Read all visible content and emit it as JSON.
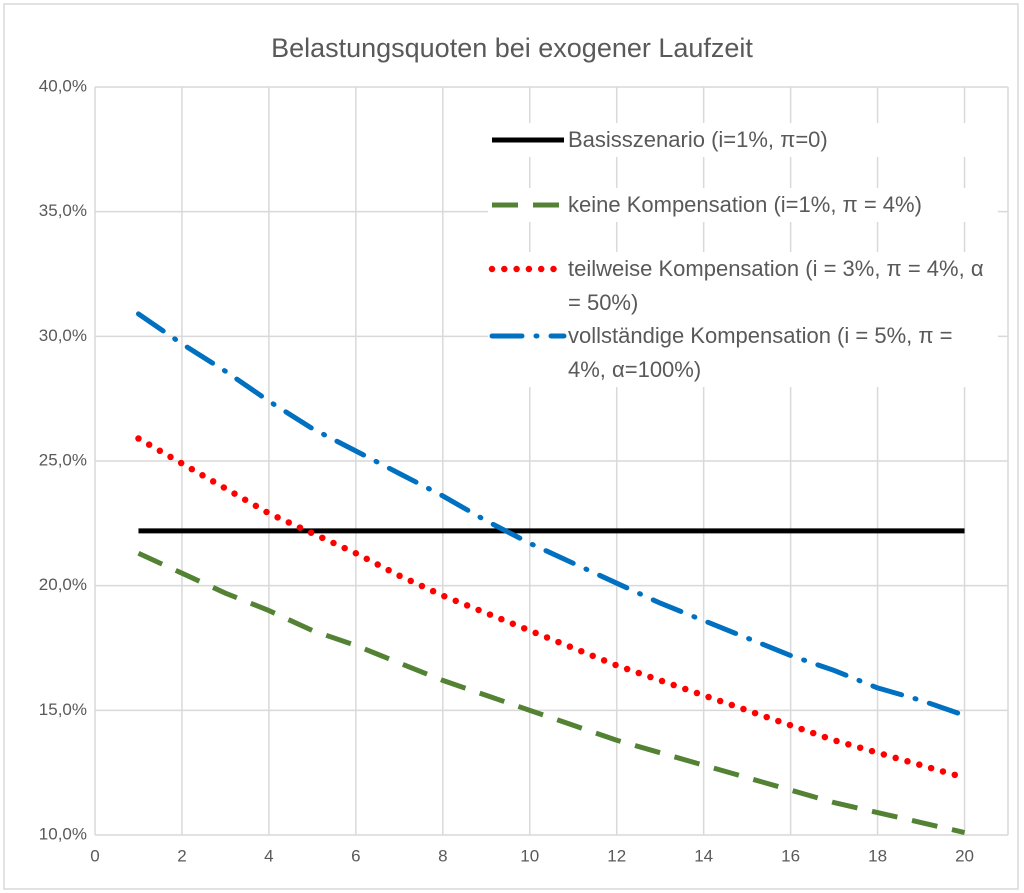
{
  "chart_data": {
    "type": "line",
    "title": "Belastungsquoten bei exogener Laufzeit",
    "x": [
      1,
      2,
      3,
      4,
      5,
      6,
      7,
      8,
      9,
      10,
      11,
      12,
      13,
      14,
      15,
      16,
      17,
      18,
      19,
      20
    ],
    "xlim": [
      0,
      21
    ],
    "xticks": [
      0,
      2,
      4,
      6,
      8,
      10,
      12,
      14,
      16,
      18,
      20
    ],
    "ylim": [
      10,
      40
    ],
    "yticks": [
      {
        "value": 10,
        "label": "10,0%"
      },
      {
        "value": 15,
        "label": "15,0%"
      },
      {
        "value": 20,
        "label": "20,0%"
      },
      {
        "value": 25,
        "label": "25,0%"
      },
      {
        "value": 30,
        "label": "30,0%"
      },
      {
        "value": 35,
        "label": "35,0%"
      },
      {
        "value": 40,
        "label": "40,0%"
      }
    ],
    "grid": true,
    "legend": "top-right",
    "series": [
      {
        "name": "Basisszenario (i=1%, π=0)",
        "color": "#000000",
        "line_style": "solid",
        "values": [
          22.2,
          22.2,
          22.2,
          22.2,
          22.2,
          22.2,
          22.2,
          22.2,
          22.2,
          22.2,
          22.2,
          22.2,
          22.2,
          22.2,
          22.2,
          22.2,
          22.2,
          22.2,
          22.2,
          22.2
        ]
      },
      {
        "name": "keine Kompensation (i=1%, π = 4%)",
        "color": "#548235",
        "line_style": "dash",
        "values": [
          21.3,
          20.5,
          19.7,
          19.0,
          18.2,
          17.6,
          16.9,
          16.2,
          15.6,
          15.0,
          14.4,
          13.8,
          13.3,
          12.8,
          12.3,
          11.8,
          11.3,
          10.9,
          10.5,
          10.1
        ]
      },
      {
        "name": "teilweise Kompensation (i = 3%, π = 4%, α = 50%)",
        "color": "#ff0000",
        "line_style": "dot",
        "values": [
          25.9,
          24.9,
          23.9,
          22.9,
          22.1,
          21.3,
          20.4,
          19.6,
          18.9,
          18.2,
          17.5,
          16.8,
          16.2,
          15.6,
          15.0,
          14.4,
          13.8,
          13.3,
          12.8,
          12.3
        ]
      },
      {
        "name": "vollständige Kompensation (i = 5%, π = 4%, α=100%)",
        "color": "#0070c0",
        "line_style": "dashdot",
        "values": [
          30.9,
          29.7,
          28.6,
          27.4,
          26.3,
          25.4,
          24.5,
          23.6,
          22.6,
          21.7,
          20.9,
          20.1,
          19.3,
          18.6,
          17.9,
          17.2,
          16.6,
          15.9,
          15.4,
          14.8
        ]
      }
    ]
  }
}
